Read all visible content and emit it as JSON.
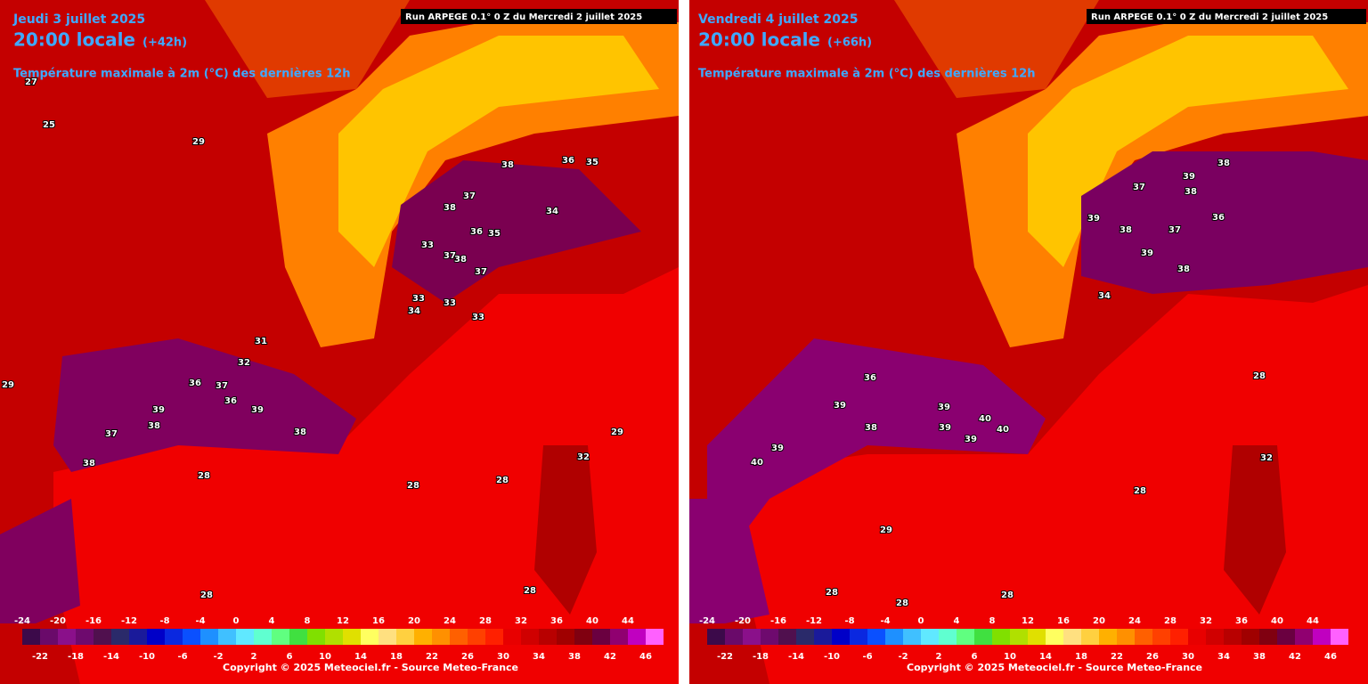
{
  "panels": [
    {
      "date": "Jeudi 3 juillet 2025",
      "time": "20:00 locale",
      "lead": "(+42h)",
      "parameter": "Température maximale à 2m (°C) des dernières 12h",
      "run": "Run ARPEGE 0.1° 0 Z du Mercredi 2 juillet 2025",
      "copyright": "Copyright © 2025 Meteociel.fr - Source Meteo-France",
      "map_labels": [
        "38",
        "36",
        "35",
        "37",
        "38",
        "34",
        "36",
        "35",
        "33",
        "37",
        "38",
        "37",
        "33",
        "33",
        "34",
        "33",
        "39",
        "38",
        "37",
        "36",
        "37",
        "36",
        "39",
        "38",
        "38",
        "28",
        "28",
        "28",
        "32",
        "29",
        "28",
        "28",
        "29",
        "27",
        "25",
        "29",
        "31",
        "32"
      ]
    },
    {
      "date": "Vendredi 4 juillet 2025",
      "time": "20:00 locale",
      "lead": "(+66h)",
      "parameter": "Température maximale à 2m (°C) des dernières 12h",
      "run": "Run ARPEGE 0.1° 0 Z du Mercredi 2 juillet 2025",
      "copyright": "Copyright © 2025 Meteociel.fr - Source Meteo-France",
      "map_labels": [
        "38",
        "39",
        "37",
        "38",
        "39",
        "38",
        "36",
        "37",
        "39",
        "38",
        "34",
        "36",
        "39",
        "39",
        "40",
        "40",
        "39",
        "39",
        "39",
        "40",
        "38",
        "28",
        "28",
        "29",
        "28",
        "28",
        "28",
        "32"
      ]
    }
  ],
  "colorbar": {
    "ticks": [
      -24,
      -22,
      -20,
      -18,
      -16,
      -14,
      -12,
      -10,
      -8,
      -6,
      -4,
      -2,
      0,
      2,
      4,
      6,
      8,
      10,
      12,
      14,
      16,
      18,
      20,
      22,
      24,
      26,
      28,
      30,
      32,
      34,
      36,
      38,
      40,
      42,
      44,
      46
    ],
    "colors": [
      "#3c0a4a",
      "#6a0a6a",
      "#8a108a",
      "#6e0a6e",
      "#50104e",
      "#2a2a6a",
      "#1a1a9a",
      "#0000c8",
      "#0a28e0",
      "#0a50ff",
      "#1e90ff",
      "#40c0ff",
      "#60e8ff",
      "#60ffd0",
      "#60ff80",
      "#40e040",
      "#80e000",
      "#b0e000",
      "#e0e000",
      "#ffff60",
      "#ffe080",
      "#ffd040",
      "#ffb000",
      "#ff9000",
      "#ff6000",
      "#ff4000",
      "#ff2000",
      "#e80000",
      "#d00000",
      "#b80000",
      "#a00000",
      "#800010",
      "#6a0040",
      "#900070",
      "#c000c0",
      "#ff60ff"
    ]
  }
}
